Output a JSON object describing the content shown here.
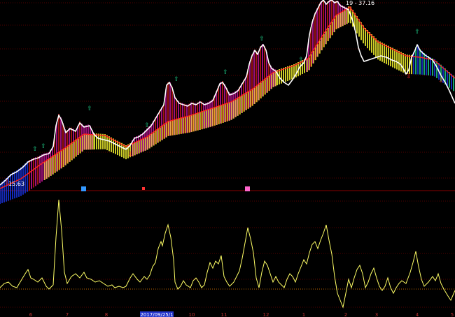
{
  "colors": {
    "background": "#000000",
    "grid": "#6e0000",
    "price_line": "#ffffff",
    "ma_line": "#ff2020",
    "indicator_line": "#ffff66",
    "band_yellow": "#ffff33",
    "band_magenta": "#c8159c",
    "band_red": "#c81818",
    "band_blue": "#1a34e6",
    "band_green": "#1fd08a",
    "date_axis_text": "#c03030",
    "date_highlight_bg": "#2233cc",
    "low_label_text": "#ffffff",
    "high_label_text": "#ffffff"
  },
  "chart_data": [
    {
      "type": "line",
      "panel": "price",
      "low_label": "15.63",
      "high_label": "19 - 37.16",
      "price_series": [
        [
          0,
          265
        ],
        [
          8,
          258
        ],
        [
          16,
          250
        ],
        [
          24,
          246
        ],
        [
          32,
          240
        ],
        [
          40,
          232
        ],
        [
          48,
          228
        ],
        [
          55,
          226
        ],
        [
          62,
          222
        ],
        [
          70,
          220
        ],
        [
          76,
          210
        ],
        [
          80,
          180
        ],
        [
          84,
          165
        ],
        [
          88,
          172
        ],
        [
          94,
          190
        ],
        [
          100,
          184
        ],
        [
          108,
          188
        ],
        [
          114,
          176
        ],
        [
          120,
          182
        ],
        [
          128,
          180
        ],
        [
          134,
          192
        ],
        [
          140,
          198
        ],
        [
          148,
          200
        ],
        [
          156,
          202
        ],
        [
          164,
          206
        ],
        [
          172,
          210
        ],
        [
          180,
          214
        ],
        [
          186,
          208
        ],
        [
          192,
          198
        ],
        [
          198,
          196
        ],
        [
          204,
          192
        ],
        [
          210,
          186
        ],
        [
          216,
          180
        ],
        [
          222,
          170
        ],
        [
          228,
          160
        ],
        [
          234,
          150
        ],
        [
          238,
          122
        ],
        [
          242,
          118
        ],
        [
          246,
          126
        ],
        [
          250,
          140
        ],
        [
          256,
          148
        ],
        [
          262,
          150
        ],
        [
          268,
          152
        ],
        [
          274,
          148
        ],
        [
          280,
          150
        ],
        [
          286,
          146
        ],
        [
          292,
          150
        ],
        [
          298,
          148
        ],
        [
          304,
          144
        ],
        [
          310,
          130
        ],
        [
          314,
          120
        ],
        [
          318,
          118
        ],
        [
          322,
          124
        ],
        [
          328,
          136
        ],
        [
          334,
          134
        ],
        [
          340,
          130
        ],
        [
          346,
          120
        ],
        [
          352,
          110
        ],
        [
          356,
          92
        ],
        [
          360,
          80
        ],
        [
          364,
          72
        ],
        [
          368,
          78
        ],
        [
          372,
          68
        ],
        [
          376,
          64
        ],
        [
          380,
          72
        ],
        [
          384,
          90
        ],
        [
          388,
          98
        ],
        [
          394,
          102
        ],
        [
          400,
          112
        ],
        [
          406,
          118
        ],
        [
          412,
          122
        ],
        [
          418,
          114
        ],
        [
          424,
          104
        ],
        [
          428,
          96
        ],
        [
          434,
          90
        ],
        [
          438,
          80
        ],
        [
          442,
          50
        ],
        [
          446,
          32
        ],
        [
          450,
          20
        ],
        [
          454,
          12
        ],
        [
          458,
          4
        ],
        [
          462,
          0
        ],
        [
          466,
          6
        ],
        [
          470,
          2
        ],
        [
          474,
          0
        ],
        [
          478,
          4
        ],
        [
          482,
          2
        ],
        [
          486,
          8
        ],
        [
          490,
          10
        ],
        [
          494,
          12
        ],
        [
          498,
          14
        ],
        [
          504,
          30
        ],
        [
          508,
          46
        ],
        [
          512,
          68
        ],
        [
          516,
          80
        ],
        [
          520,
          88
        ],
        [
          526,
          86
        ],
        [
          532,
          84
        ],
        [
          538,
          82
        ],
        [
          544,
          80
        ],
        [
          552,
          82
        ],
        [
          560,
          86
        ],
        [
          566,
          88
        ],
        [
          572,
          92
        ],
        [
          576,
          98
        ],
        [
          580,
          106
        ],
        [
          584,
          100
        ],
        [
          588,
          82
        ],
        [
          592,
          74
        ],
        [
          596,
          64
        ],
        [
          600,
          72
        ],
        [
          606,
          78
        ],
        [
          612,
          82
        ],
        [
          618,
          86
        ],
        [
          624,
          96
        ],
        [
          630,
          108
        ],
        [
          636,
          118
        ],
        [
          642,
          130
        ],
        [
          650,
          148
        ]
      ],
      "ma_series": [
        [
          0,
          270
        ],
        [
          30,
          256
        ],
        [
          60,
          234
        ],
        [
          90,
          214
        ],
        [
          120,
          192
        ],
        [
          150,
          194
        ],
        [
          180,
          210
        ],
        [
          210,
          196
        ],
        [
          240,
          174
        ],
        [
          270,
          166
        ],
        [
          300,
          156
        ],
        [
          330,
          146
        ],
        [
          360,
          128
        ],
        [
          390,
          104
        ],
        [
          420,
          94
        ],
        [
          440,
          84
        ],
        [
          460,
          52
        ],
        [
          480,
          22
        ],
        [
          500,
          10
        ],
        [
          520,
          40
        ],
        [
          540,
          60
        ],
        [
          560,
          70
        ],
        [
          580,
          80
        ],
        [
          600,
          82
        ],
        [
          620,
          86
        ],
        [
          650,
          112
        ]
      ]
    },
    {
      "type": "line",
      "panel": "indicator",
      "x_tick_labels": [
        "6",
        "7",
        "8",
        "2017/09/25/1",
        "10",
        "11",
        "12",
        "1",
        "2",
        "3",
        "4",
        "5"
      ],
      "highlighted_tick": "2017/09/25/1",
      "series": [
        [
          0,
          412
        ],
        [
          6,
          406
        ],
        [
          12,
          404
        ],
        [
          18,
          410
        ],
        [
          24,
          412
        ],
        [
          30,
          402
        ],
        [
          36,
          392
        ],
        [
          40,
          386
        ],
        [
          44,
          398
        ],
        [
          48,
          400
        ],
        [
          54,
          404
        ],
        [
          60,
          398
        ],
        [
          66,
          410
        ],
        [
          70,
          414
        ],
        [
          76,
          408
        ],
        [
          80,
          340
        ],
        [
          84,
          286
        ],
        [
          88,
          330
        ],
        [
          92,
          390
        ],
        [
          96,
          406
        ],
        [
          102,
          396
        ],
        [
          108,
          392
        ],
        [
          114,
          398
        ],
        [
          120,
          390
        ],
        [
          124,
          398
        ],
        [
          130,
          400
        ],
        [
          136,
          404
        ],
        [
          142,
          402
        ],
        [
          148,
          406
        ],
        [
          154,
          410
        ],
        [
          160,
          408
        ],
        [
          164,
          412
        ],
        [
          170,
          410
        ],
        [
          176,
          412
        ],
        [
          180,
          410
        ],
        [
          186,
          398
        ],
        [
          190,
          392
        ],
        [
          196,
          400
        ],
        [
          200,
          404
        ],
        [
          206,
          396
        ],
        [
          210,
          400
        ],
        [
          214,
          394
        ],
        [
          218,
          382
        ],
        [
          222,
          376
        ],
        [
          226,
          356
        ],
        [
          230,
          346
        ],
        [
          232,
          352
        ],
        [
          236,
          334
        ],
        [
          240,
          322
        ],
        [
          244,
          340
        ],
        [
          248,
          372
        ],
        [
          250,
          404
        ],
        [
          254,
          414
        ],
        [
          258,
          410
        ],
        [
          262,
          402
        ],
        [
          266,
          408
        ],
        [
          272,
          412
        ],
        [
          276,
          402
        ],
        [
          280,
          398
        ],
        [
          284,
          404
        ],
        [
          288,
          412
        ],
        [
          292,
          408
        ],
        [
          296,
          390
        ],
        [
          300,
          376
        ],
        [
          304,
          384
        ],
        [
          308,
          374
        ],
        [
          312,
          378
        ],
        [
          316,
          366
        ],
        [
          320,
          396
        ],
        [
          324,
          404
        ],
        [
          328,
          410
        ],
        [
          334,
          404
        ],
        [
          338,
          396
        ],
        [
          342,
          388
        ],
        [
          346,
          370
        ],
        [
          350,
          348
        ],
        [
          354,
          326
        ],
        [
          358,
          342
        ],
        [
          362,
          362
        ],
        [
          366,
          398
        ],
        [
          370,
          412
        ],
        [
          374,
          390
        ],
        [
          378,
          374
        ],
        [
          382,
          380
        ],
        [
          386,
          392
        ],
        [
          390,
          404
        ],
        [
          394,
          396
        ],
        [
          398,
          404
        ],
        [
          402,
          408
        ],
        [
          406,
          412
        ],
        [
          410,
          400
        ],
        [
          414,
          392
        ],
        [
          418,
          396
        ],
        [
          422,
          404
        ],
        [
          426,
          392
        ],
        [
          430,
          382
        ],
        [
          434,
          372
        ],
        [
          438,
          378
        ],
        [
          442,
          362
        ],
        [
          446,
          350
        ],
        [
          450,
          346
        ],
        [
          454,
          356
        ],
        [
          458,
          344
        ],
        [
          462,
          334
        ],
        [
          466,
          322
        ],
        [
          470,
          344
        ],
        [
          474,
          364
        ],
        [
          478,
          396
        ],
        [
          482,
          420
        ],
        [
          486,
          430
        ],
        [
          490,
          440
        ],
        [
          494,
          420
        ],
        [
          498,
          400
        ],
        [
          502,
          412
        ],
        [
          506,
          398
        ],
        [
          510,
          386
        ],
        [
          514,
          380
        ],
        [
          518,
          392
        ],
        [
          522,
          412
        ],
        [
          526,
          404
        ],
        [
          530,
          392
        ],
        [
          534,
          384
        ],
        [
          538,
          398
        ],
        [
          542,
          410
        ],
        [
          546,
          416
        ],
        [
          550,
          410
        ],
        [
          554,
          398
        ],
        [
          558,
          412
        ],
        [
          562,
          420
        ],
        [
          566,
          412
        ],
        [
          570,
          406
        ],
        [
          574,
          402
        ],
        [
          580,
          406
        ],
        [
          586,
          390
        ],
        [
          590,
          376
        ],
        [
          594,
          360
        ],
        [
          598,
          382
        ],
        [
          602,
          400
        ],
        [
          606,
          410
        ],
        [
          612,
          404
        ],
        [
          618,
          396
        ],
        [
          622,
          402
        ],
        [
          626,
          392
        ],
        [
          630,
          406
        ],
        [
          634,
          414
        ],
        [
          640,
          424
        ],
        [
          644,
          430
        ],
        [
          650,
          416
        ]
      ]
    }
  ]
}
